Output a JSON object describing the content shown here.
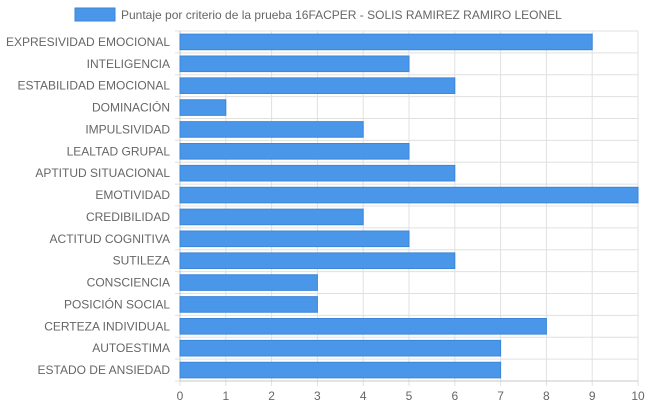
{
  "chart_data": {
    "type": "bar",
    "orientation": "horizontal",
    "legend_position": "top",
    "grid": true,
    "colors": {
      "bar_fill": "#4a97ea",
      "bar_stroke": "#3a86d8",
      "grid": "#e0e0e0",
      "axis_text": "#666666"
    },
    "series": [
      {
        "name": "Puntaje por criterio de la prueba 16FACPER - SOLIS RAMIREZ RAMIRO LEONEL",
        "values": [
          9,
          5,
          6,
          1,
          4,
          5,
          6,
          10,
          4,
          5,
          6,
          3,
          3,
          8,
          7,
          7
        ]
      }
    ],
    "categories": [
      "EXPRESIVIDAD EMOCIONAL",
      "INTELIGENCIA",
      "ESTABILIDAD EMOCIONAL",
      "DOMINACIÓN",
      "IMPULSIVIDAD",
      "LEALTAD GRUPAL",
      "APTITUD SITUACIONAL",
      "EMOTIVIDAD",
      "CREDIBILIDAD",
      "ACTITUD COGNITIVA",
      "SUTILEZA",
      "CONSCIENCIA",
      "POSICIÓN SOCIAL",
      "CERTEZA INDIVIDUAL",
      "AUTOESTIMA",
      "ESTADO DE ANSIEDAD"
    ],
    "xlim": [
      0,
      10
    ],
    "x_ticks": [
      "0",
      "1",
      "2",
      "3",
      "4",
      "5",
      "6",
      "7",
      "8",
      "9",
      "10"
    ]
  }
}
